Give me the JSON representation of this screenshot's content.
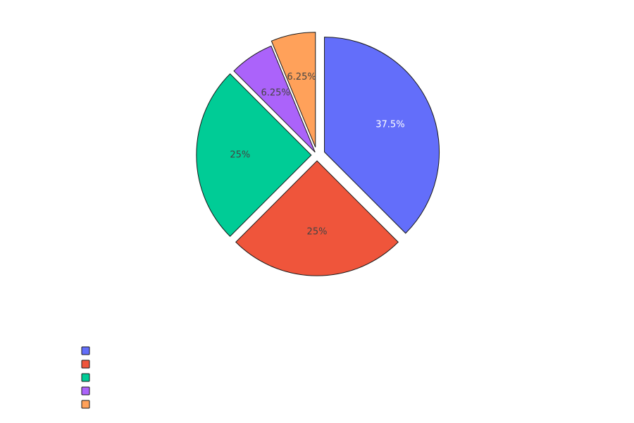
{
  "chart_data": {
    "type": "pie",
    "title": "",
    "legend_placement": "bottom-left",
    "slices": [
      {
        "label": "",
        "value": 37.5,
        "text": "37.5%",
        "color": "#636efa",
        "text_color": "#ffffff",
        "pull": 0.07
      },
      {
        "label": "",
        "value": 25,
        "text": "25%",
        "color": "#ef553b",
        "text_color": "#444444",
        "pull": 0.05
      },
      {
        "label": "",
        "value": 25,
        "text": "25%",
        "color": "#00cc96",
        "text_color": "#444444",
        "pull": 0.05
      },
      {
        "label": "",
        "value": 6.25,
        "text": "6.25%",
        "color": "#ab63fa",
        "text_color": "#444444",
        "pull": 0.03
      },
      {
        "label": "",
        "value": 6.25,
        "text": "6.25%",
        "color": "#ffa15a",
        "text_color": "#444444",
        "pull": 0.07
      }
    ],
    "legend": [
      {
        "label": "",
        "color": "#636efa"
      },
      {
        "label": "",
        "color": "#ef553b"
      },
      {
        "label": "",
        "color": "#00cc96"
      },
      {
        "label": "",
        "color": "#ab63fa"
      },
      {
        "label": "",
        "color": "#ffa15a"
      }
    ]
  }
}
